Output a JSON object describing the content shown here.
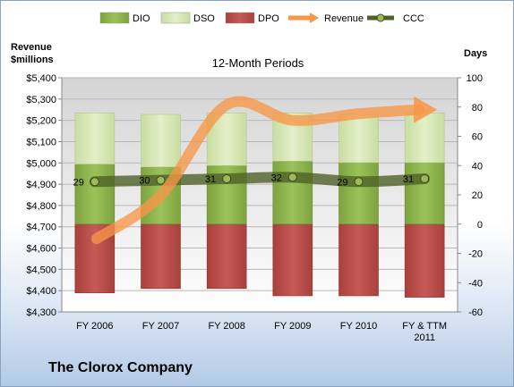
{
  "chart_data": {
    "type": "bar",
    "title": "12-Month Periods",
    "company": "The Clorox Company",
    "left_axis_label_line1": "Revenue",
    "left_axis_label_line2": "$millions",
    "right_axis_label": "Days",
    "categories": [
      "FY 2006",
      "FY 2007",
      "FY 2008",
      "FY 2009",
      "FY 2010",
      "FY & TTM 2011"
    ],
    "left_axis": {
      "min": 4300,
      "max": 5400,
      "step": 100,
      "ticks": [
        "$4,300",
        "$4,400",
        "$4,500",
        "$4,600",
        "$4,700",
        "$4,800",
        "$4,900",
        "$5,000",
        "$5,100",
        "$5,200",
        "$5,300",
        "$5,400"
      ]
    },
    "right_axis": {
      "min": -60,
      "max": 100,
      "step": 20,
      "ticks": [
        "-60",
        "-40",
        "-20",
        "0",
        "20",
        "40",
        "60",
        "80",
        "100"
      ]
    },
    "grid": "horizontal",
    "legend_position": "top",
    "series": [
      {
        "name": "DIO",
        "axis": "right",
        "kind": "stacked-bar-up",
        "color": "#8cb44e",
        "values": [
          41,
          39,
          40,
          43,
          42,
          42
        ]
      },
      {
        "name": "DSO",
        "axis": "right",
        "kind": "stacked-bar-up",
        "color": "#d6e6b4",
        "values": [
          35,
          36,
          36,
          33,
          33,
          34
        ]
      },
      {
        "name": "DPO",
        "axis": "right",
        "kind": "bar-down",
        "color": "#c0504d",
        "values": [
          -47,
          -44,
          -44,
          -49,
          -49,
          -50
        ]
      },
      {
        "name": "Revenue",
        "axis": "left",
        "kind": "line",
        "color": "#f79646",
        "values": [
          4644,
          4847,
          5273,
          5200,
          5231,
          5250
        ]
      },
      {
        "name": "CCC",
        "axis": "right",
        "kind": "line",
        "color": "#4f6228",
        "values": [
          29,
          30,
          31,
          32,
          29,
          31
        ]
      }
    ],
    "data_labels": {
      "CCC": [
        "29",
        "30",
        "31",
        "32",
        "29",
        "31"
      ]
    }
  }
}
